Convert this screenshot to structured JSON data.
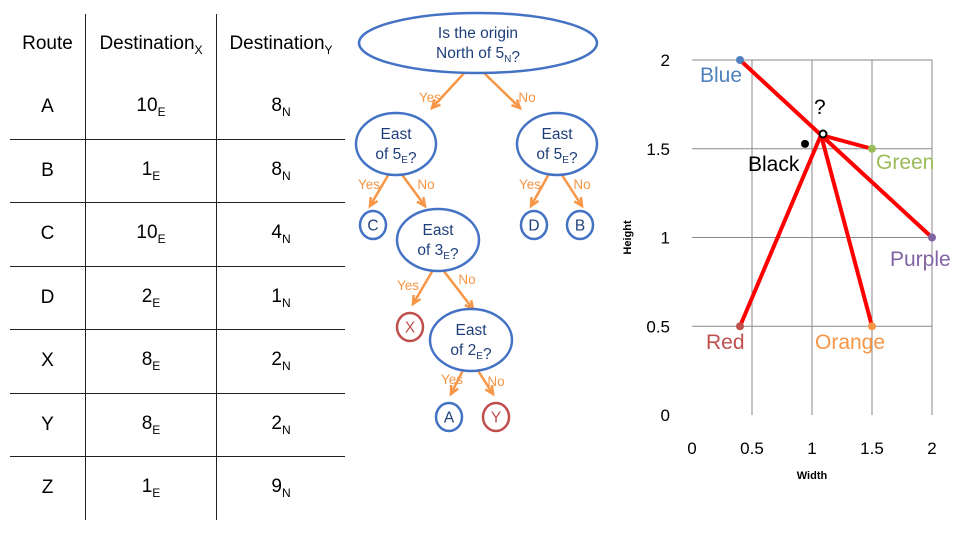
{
  "table": {
    "headers": [
      {
        "base": "Route",
        "sub": ""
      },
      {
        "base": "Destination",
        "sub": "X"
      },
      {
        "base": "Destination",
        "sub": "Y"
      }
    ],
    "rows": [
      {
        "route": "A",
        "x": "10",
        "x_unit": "E",
        "y": "8",
        "y_unit": "N"
      },
      {
        "route": "B",
        "x": "1",
        "x_unit": "E",
        "y": "8",
        "y_unit": "N"
      },
      {
        "route": "C",
        "x": "10",
        "x_unit": "E",
        "y": "4",
        "y_unit": "N"
      },
      {
        "route": "D",
        "x": "2",
        "x_unit": "E",
        "y": "1",
        "y_unit": "N"
      },
      {
        "route": "X",
        "x": "8",
        "x_unit": "E",
        "y": "2",
        "y_unit": "N"
      },
      {
        "route": "Y",
        "x": "8",
        "x_unit": "E",
        "y": "2",
        "y_unit": "N"
      },
      {
        "route": "Z",
        "x": "1",
        "x_unit": "E",
        "y": "9",
        "y_unit": "N"
      }
    ]
  },
  "tree": {
    "colors": {
      "node_border": "#4472c4",
      "leaf_wrong": "#c0504d",
      "edge": "#f79646"
    },
    "root": {
      "lines": [
        [
          "Is the origin"
        ],
        [
          "North of 5",
          {
            "sub": "N"
          },
          "?"
        ]
      ]
    },
    "left": {
      "lines": [
        [
          "East"
        ],
        [
          "of 5",
          {
            "sub": "E"
          },
          "?"
        ]
      ]
    },
    "right": {
      "lines": [
        [
          "East"
        ],
        [
          "of 5",
          {
            "sub": "E"
          },
          "?"
        ]
      ]
    },
    "left_right": {
      "lines": [
        [
          "East"
        ],
        [
          "of 3",
          {
            "sub": "E"
          },
          "?"
        ]
      ]
    },
    "deep": {
      "lines": [
        [
          "East"
        ],
        [
          "of 2",
          {
            "sub": "E"
          },
          "?"
        ]
      ]
    },
    "leaves": {
      "c": "C",
      "d": "D",
      "b": "B",
      "x": "X",
      "a": "A",
      "y": "Y"
    },
    "yes_label": "Yes",
    "no_label": "No"
  },
  "chart_data": {
    "type": "scatter",
    "xlabel": "Width",
    "ylabel": "Height",
    "xlim": [
      0,
      2
    ],
    "ylim": [
      0,
      2
    ],
    "x_ticks": [
      "0",
      "0.5",
      "1",
      "1.5",
      "2"
    ],
    "y_ticks": [
      "0",
      "0.5",
      "1",
      "1.5",
      "2"
    ],
    "grid": true,
    "points": [
      {
        "name": "Blue",
        "x": 0.4,
        "y": 2.0,
        "color": "#4f81bd"
      },
      {
        "name": "Green",
        "x": 1.5,
        "y": 1.5,
        "color": "#9bbb59"
      },
      {
        "name": "Purple",
        "x": 2.0,
        "y": 1.0,
        "color": "#8064a2"
      },
      {
        "name": "Red",
        "x": 0.4,
        "y": 0.5,
        "color": "#c0504d"
      },
      {
        "name": "Orange",
        "x": 1.5,
        "y": 0.5,
        "color": "#f79646"
      },
      {
        "name": "Black",
        "x": 1.0,
        "y": 1.55,
        "color": "#000000"
      }
    ],
    "query_point": {
      "x": 1.1,
      "y": 1.6,
      "label": "?"
    },
    "line_color": "#ff0000"
  }
}
